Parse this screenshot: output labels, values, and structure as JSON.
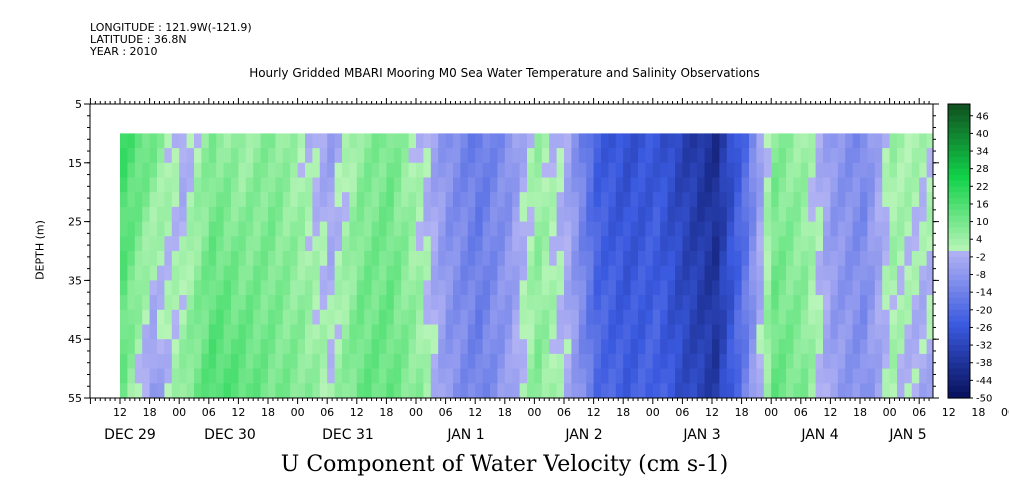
{
  "header": {
    "longitude": "LONGITUDE : 121.9W(-121.9)",
    "latitude": "LATITUDE : 36.8N",
    "year": "YEAR : 2010"
  },
  "chart_data": {
    "type": "heatmap",
    "title": "Hourly Gridded MBARI Mooring M0 Sea Water Temperature and Salinity Observations",
    "subtitle": "U Component of Water Velocity (cm s-1)",
    "ylabel": "DEPTH (m)",
    "ylim": [
      55,
      5
    ],
    "y_ticks": [
      5,
      15,
      25,
      35,
      45,
      55
    ],
    "x_hour_labels": [
      "12",
      "18",
      "00",
      "06",
      "12",
      "18",
      "00",
      "06",
      "12",
      "18",
      "00",
      "06",
      "12",
      "18",
      "00",
      "06",
      "12",
      "18",
      "00",
      "06",
      "12",
      "18",
      "00",
      "06",
      "12",
      "18",
      "00",
      "06",
      "12",
      "18",
      "00",
      "06",
      "12",
      "18",
      "00",
      "06"
    ],
    "x_day_labels": [
      "DEC 29",
      "DEC 30",
      "DEC 31",
      "JAN  1",
      "JAN  2",
      "JAN  3",
      "JAN  4",
      "JAN  5"
    ],
    "colorbar_labels": [
      "46",
      "40",
      "34",
      "28",
      "22",
      "16",
      "10",
      "4",
      "-2",
      "-8",
      "-14",
      "-20",
      "-26",
      "-32",
      "-38",
      "-44",
      "-50"
    ],
    "colorbar_range": [
      -50,
      50
    ],
    "data_depth_range": [
      10,
      55
    ],
    "column_velocity_profile": [
      {
        "hours": 0,
        "surface": 18,
        "bottom": 10
      },
      {
        "hours": 6,
        "surface": 10,
        "bottom": -8
      },
      {
        "hours": 12,
        "surface": -4,
        "bottom": 6
      },
      {
        "hours": 18,
        "surface": 8,
        "bottom": 16
      },
      {
        "hours": 24,
        "surface": 4,
        "bottom": 14
      },
      {
        "hours": 30,
        "surface": 8,
        "bottom": 10
      },
      {
        "hours": 36,
        "surface": 2,
        "bottom": 8
      },
      {
        "hours": 42,
        "surface": -6,
        "bottom": 2
      },
      {
        "hours": 48,
        "surface": 6,
        "bottom": 12
      },
      {
        "hours": 54,
        "surface": 10,
        "bottom": 12
      },
      {
        "hours": 60,
        "surface": 0,
        "bottom": 6
      },
      {
        "hours": 66,
        "surface": -10,
        "bottom": -8
      },
      {
        "hours": 72,
        "surface": -16,
        "bottom": -14
      },
      {
        "hours": 78,
        "surface": -10,
        "bottom": -6
      },
      {
        "hours": 84,
        "surface": 4,
        "bottom": 8
      },
      {
        "hours": 90,
        "surface": -4,
        "bottom": -2
      },
      {
        "hours": 96,
        "surface": -24,
        "bottom": -20
      },
      {
        "hours": 102,
        "surface": -28,
        "bottom": -24
      },
      {
        "hours": 108,
        "surface": -26,
        "bottom": -22
      },
      {
        "hours": 114,
        "surface": -34,
        "bottom": -30
      },
      {
        "hours": 120,
        "surface": -40,
        "bottom": -36
      },
      {
        "hours": 126,
        "surface": -20,
        "bottom": -14
      },
      {
        "hours": 132,
        "surface": 8,
        "bottom": 12
      },
      {
        "hours": 138,
        "surface": 4,
        "bottom": 8
      },
      {
        "hours": 144,
        "surface": -8,
        "bottom": -6
      },
      {
        "hours": 150,
        "surface": -12,
        "bottom": -10
      },
      {
        "hours": 156,
        "surface": 4,
        "bottom": 2
      },
      {
        "hours": 162,
        "surface": 2,
        "bottom": -4
      },
      {
        "hours": 168,
        "surface": 4,
        "bottom": 0
      },
      {
        "hours": 174,
        "surface": 6,
        "bottom": 4
      },
      {
        "hours": 180,
        "surface": 4,
        "bottom": 2
      }
    ],
    "colors": {
      "background": "#ffffff",
      "strong_positive": "#0f4f1f",
      "positive": "#12d24a",
      "near_zero": "#b8f5b8",
      "weak_negative": "#b4b4f4",
      "negative": "#3a5ae0",
      "strong_negative": "#07105a"
    }
  }
}
